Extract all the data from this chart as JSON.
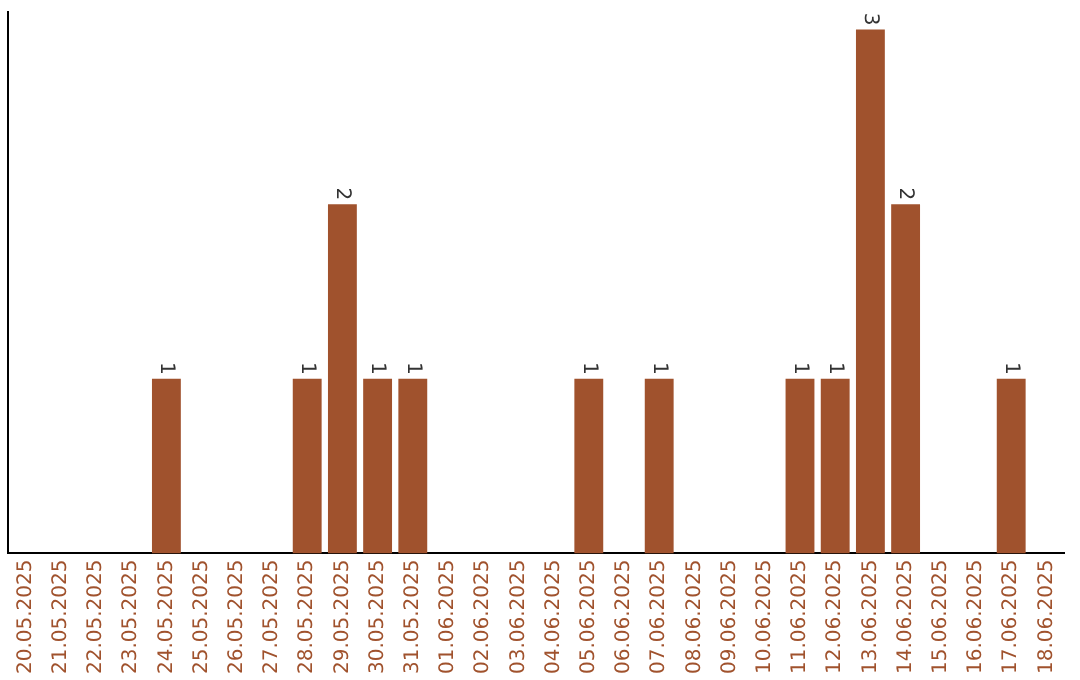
{
  "chart_data": {
    "type": "bar",
    "categories": [
      "20.05.2025",
      "21.05.2025",
      "22.05.2025",
      "23.05.2025",
      "24.05.2025",
      "25.05.2025",
      "26.05.2025",
      "27.05.2025",
      "28.05.2025",
      "29.05.2025",
      "30.05.2025",
      "31.05.2025",
      "01.06.2025",
      "02.06.2025",
      "03.06.2025",
      "04.06.2025",
      "05.06.2025",
      "06.06.2025",
      "07.06.2025",
      "08.06.2025",
      "09.06.2025",
      "10.06.2025",
      "11.06.2025",
      "12.06.2025",
      "13.06.2025",
      "14.06.2025",
      "15.06.2025",
      "16.06.2025",
      "17.06.2025",
      "18.06.2025"
    ],
    "values": [
      0,
      0,
      0,
      0,
      1,
      0,
      0,
      0,
      1,
      2,
      1,
      1,
      0,
      0,
      0,
      0,
      1,
      0,
      1,
      0,
      0,
      0,
      1,
      1,
      3,
      2,
      0,
      0,
      1,
      0
    ],
    "value_labels": [
      null,
      null,
      null,
      null,
      "1",
      null,
      null,
      null,
      "1",
      "2",
      "1",
      "1",
      null,
      null,
      null,
      null,
      "1",
      null,
      "1",
      null,
      null,
      null,
      "1",
      "1",
      "3",
      "2",
      null,
      null,
      "1",
      null
    ],
    "color": "#a0522d",
    "ylim": [
      0,
      3.1
    ],
    "tick_labels": "x",
    "grid": false,
    "legend": false
  }
}
